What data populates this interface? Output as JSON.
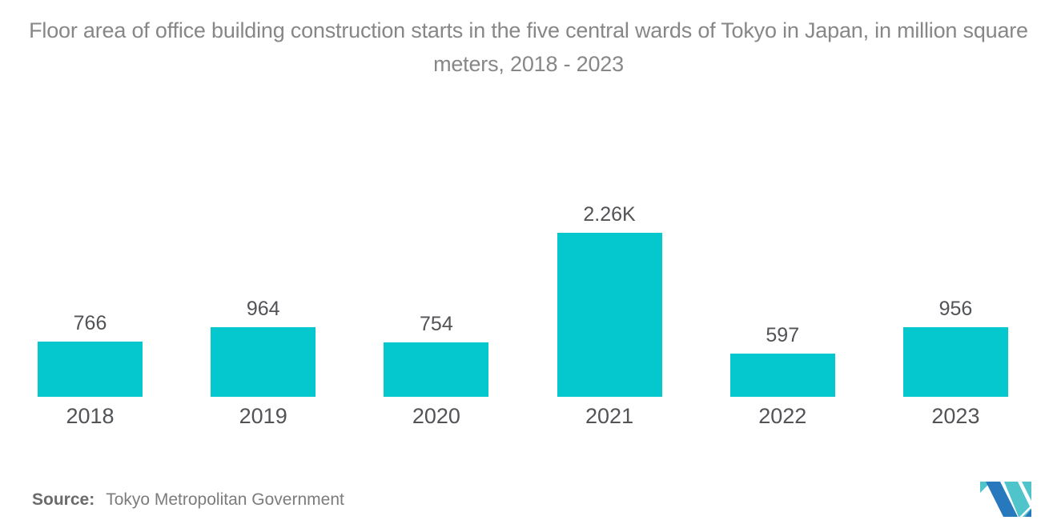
{
  "title": "Floor area of office building construction starts in the five central wards of Tokyo in Japan, in million square meters, 2018 - 2023",
  "source": {
    "label": "Source:",
    "text": "Tokyo Metropolitan Government"
  },
  "logo": {
    "name": "mordor-intelligence-logo"
  },
  "colors": {
    "bar": "#04C8CE",
    "title": "#878787",
    "label": "#515356",
    "source_label": "#6B6B6B",
    "source_text": "#7C7C7C",
    "logo_blue": "#2878BE",
    "logo_teal": "#4FC4CB"
  },
  "chart_data": {
    "type": "bar",
    "title": "Floor area of office building construction starts in the five central wards of Tokyo in Japan, in million square meters, 2018 - 2023",
    "categories": [
      "2018",
      "2019",
      "2020",
      "2021",
      "2022",
      "2023"
    ],
    "values": [
      766,
      964,
      754,
      2260,
      597,
      956
    ],
    "value_labels": [
      "766",
      "964",
      "754",
      "2.26K",
      "597",
      "956"
    ],
    "xlabel": "",
    "ylabel": "",
    "ylim": [
      0,
      2400
    ],
    "grid": false,
    "legend": false,
    "bar_color": "#04C8CE"
  }
}
